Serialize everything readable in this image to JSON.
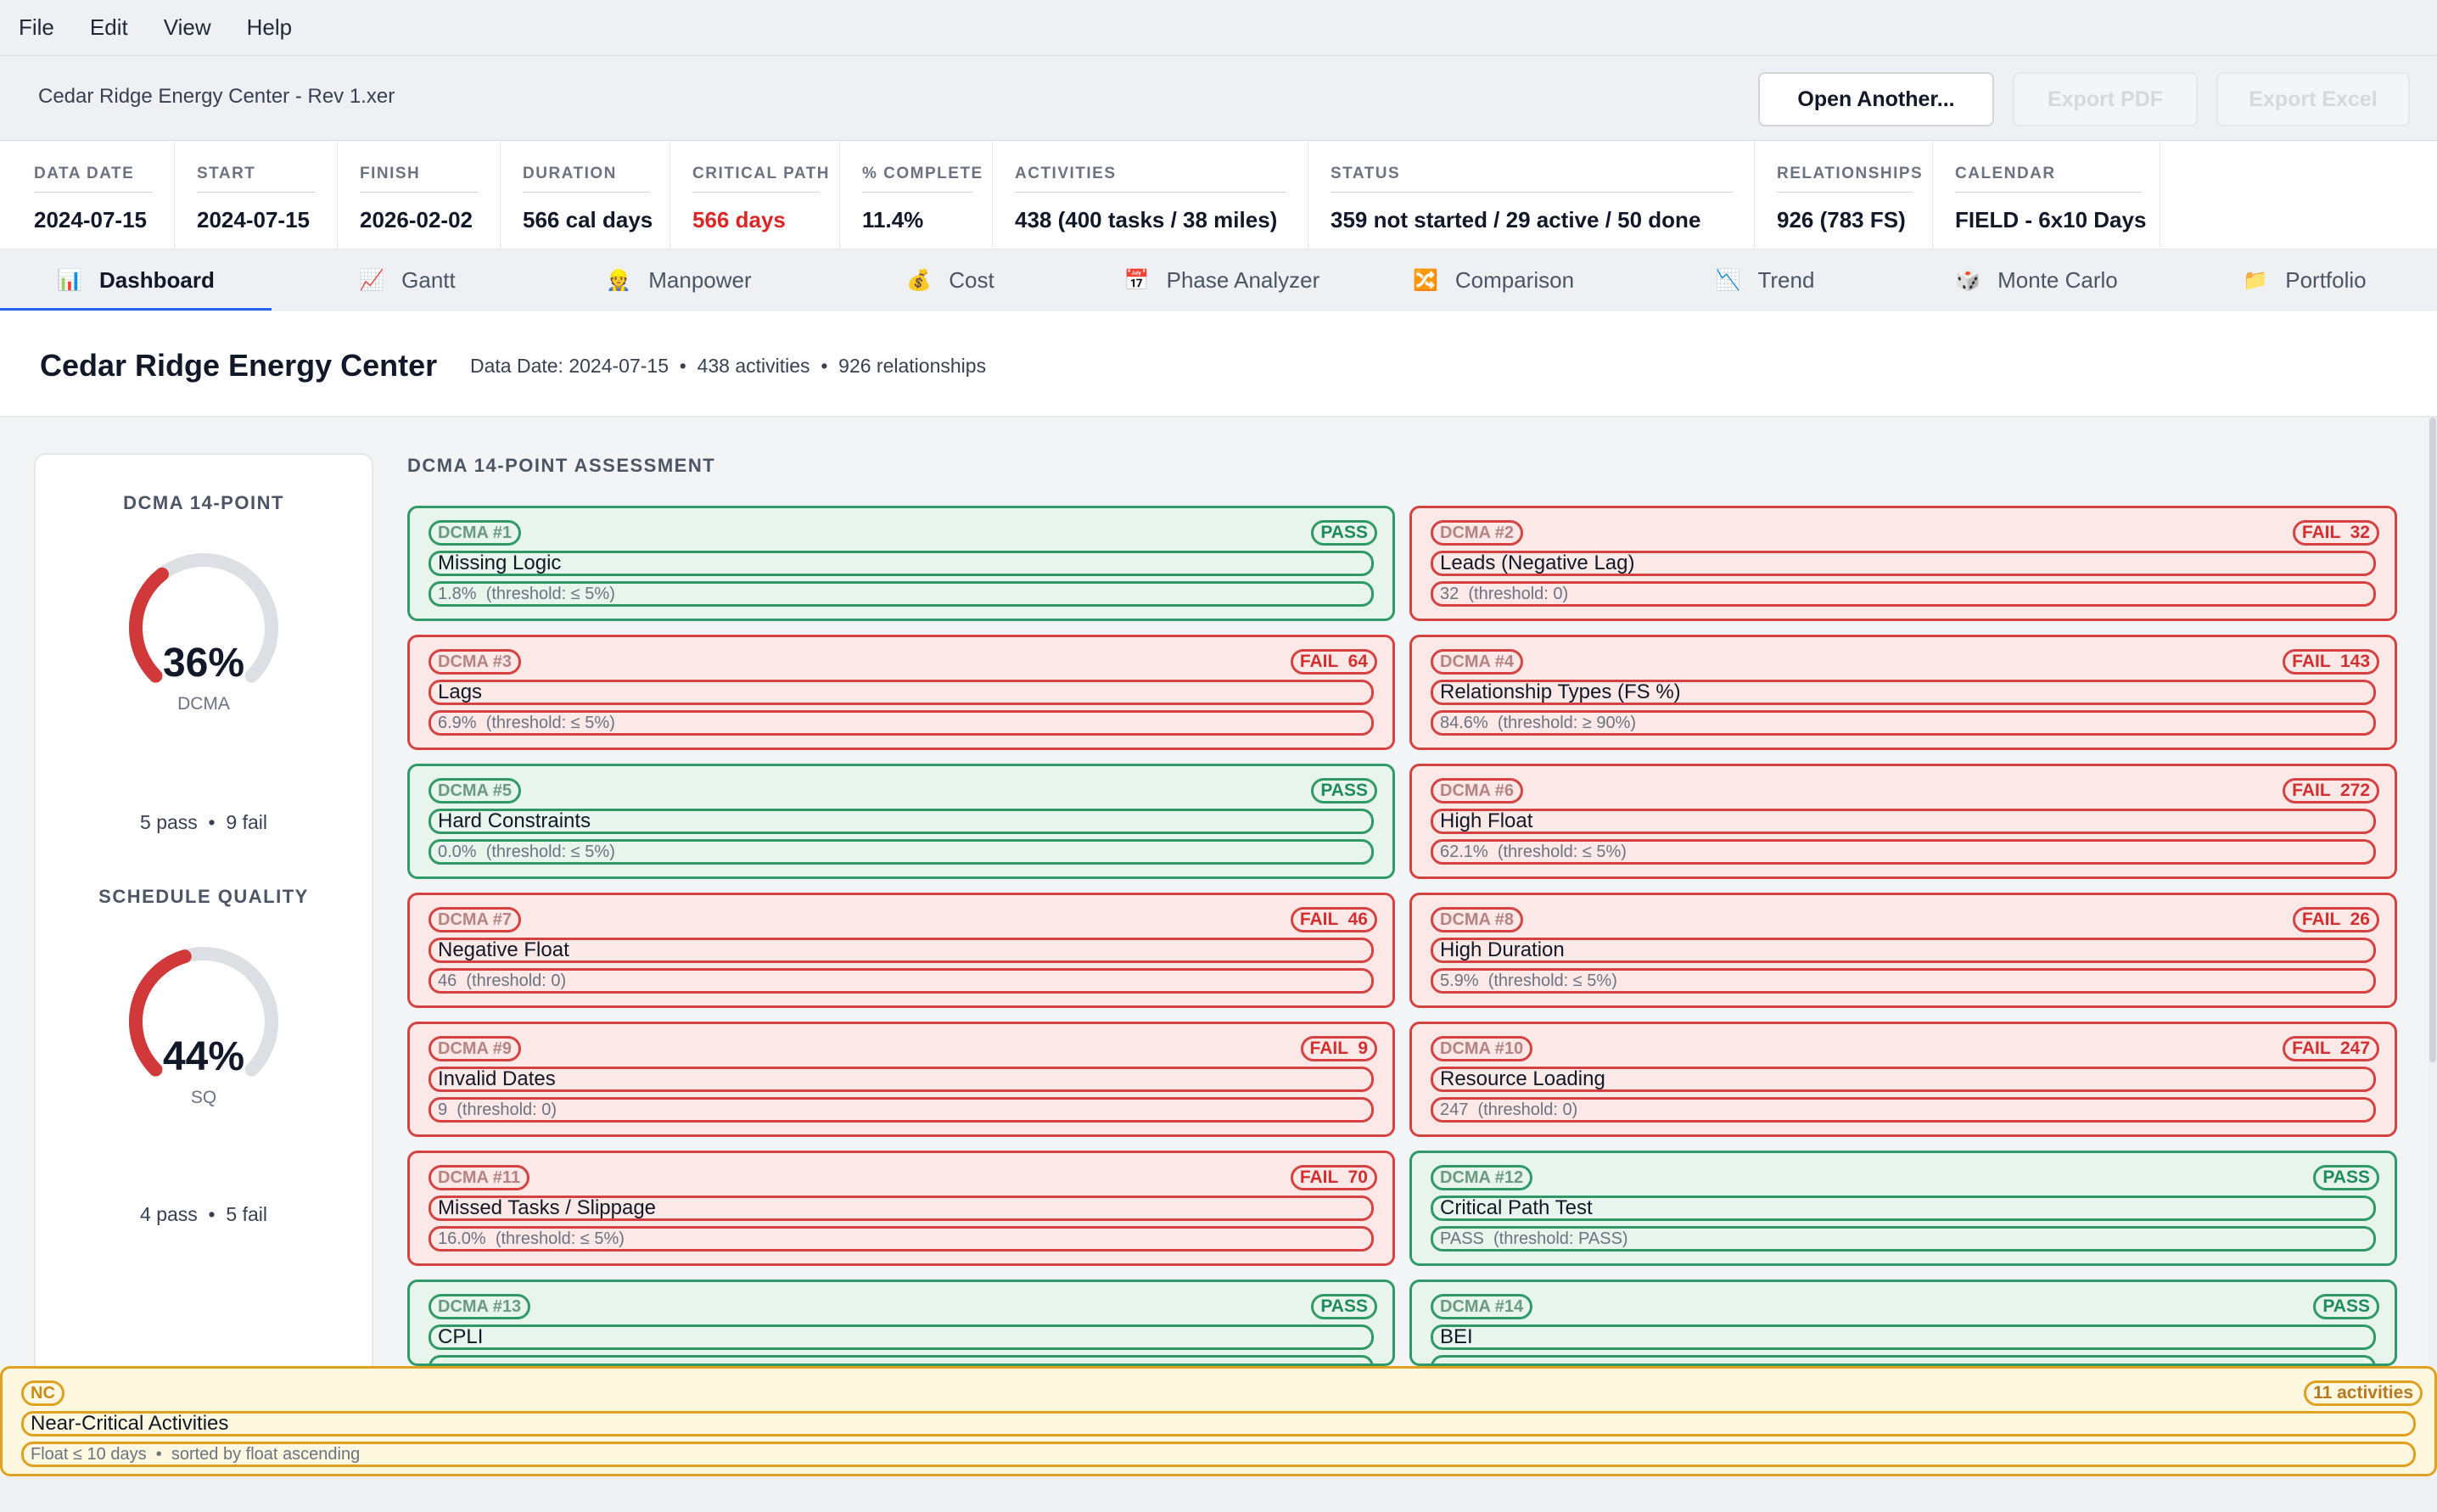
{
  "menu": [
    "File",
    "Edit",
    "View",
    "Help"
  ],
  "file": {
    "name": "Cedar Ridge Energy Center - Rev 1.xer",
    "open_label": "Open Another...",
    "export_pdf_label": "Export PDF",
    "export_excel_label": "Export Excel"
  },
  "stats": [
    {
      "label": "DATA DATE",
      "value": "2024-07-15"
    },
    {
      "label": "START",
      "value": "2024-07-15"
    },
    {
      "label": "FINISH",
      "value": "2026-02-02"
    },
    {
      "label": "DURATION",
      "value": "566 cal days"
    },
    {
      "label": "CRITICAL PATH",
      "value": "566 days"
    },
    {
      "label": "% COMPLETE",
      "value": "11.4%"
    },
    {
      "label": "ACTIVITIES",
      "value": "438  (400 tasks / 38 miles)"
    },
    {
      "label": "STATUS",
      "value": "359 not started  /  29 active  /  50 done"
    },
    {
      "label": "RELATIONSHIPS",
      "value": "926  (783 FS)"
    },
    {
      "label": "CALENDAR",
      "value": "FIELD - 6x10 Days"
    }
  ],
  "tabs": [
    {
      "label": "Dashboard",
      "icon": "📊",
      "icon_name": "bar-chart-icon"
    },
    {
      "label": "Gantt",
      "icon": "📈",
      "icon_name": "line-chart-icon"
    },
    {
      "label": "Manpower",
      "icon": "👷",
      "icon_name": "worker-icon"
    },
    {
      "label": "Cost",
      "icon": "💰",
      "icon_name": "money-bag-icon"
    },
    {
      "label": "Phase Analyzer",
      "icon": "📅",
      "icon_name": "calendar-icon"
    },
    {
      "label": "Comparison",
      "icon": "🔀",
      "icon_name": "shuffle-icon"
    },
    {
      "label": "Trend",
      "icon": "📉",
      "icon_name": "trend-down-icon"
    },
    {
      "label": "Monte Carlo",
      "icon": "🎲",
      "icon_name": "dice-icon"
    },
    {
      "label": "Portfolio",
      "icon": "📁",
      "icon_name": "folder-icon"
    }
  ],
  "page": {
    "title": "Cedar Ridge Energy Center",
    "meta": "Data Date: 2024-07-15  •  438 activities  •  926 relationships"
  },
  "gauges": {
    "dcma": {
      "title": "DCMA 14-POINT",
      "pct": "36%",
      "value": 0.36,
      "sub": "DCMA",
      "foot": "5 pass  •  9 fail"
    },
    "sq": {
      "title": "SCHEDULE QUALITY",
      "pct": "44%",
      "value": 0.44,
      "sub": "SQ",
      "foot": "4 pass  •  5 fail"
    }
  },
  "assessment": {
    "title": "DCMA 14-POINT ASSESSMENT",
    "checks": [
      {
        "tag": "DCMA #1",
        "status": "PASS",
        "name": "Missing Logic",
        "detail": "1.8%  (threshold: ≤ 5%)"
      },
      {
        "tag": "DCMA #2",
        "status": "FAIL  32",
        "name": "Leads (Negative Lag)",
        "detail": "32  (threshold: 0)"
      },
      {
        "tag": "DCMA #3",
        "status": "FAIL  64",
        "name": "Lags",
        "detail": "6.9%  (threshold: ≤ 5%)"
      },
      {
        "tag": "DCMA #4",
        "status": "FAIL  143",
        "name": "Relationship Types (FS %)",
        "detail": "84.6%  (threshold: ≥ 90%)"
      },
      {
        "tag": "DCMA #5",
        "status": "PASS",
        "name": "Hard Constraints",
        "detail": "0.0%  (threshold: ≤ 5%)"
      },
      {
        "tag": "DCMA #6",
        "status": "FAIL  272",
        "name": "High Float",
        "detail": "62.1%  (threshold: ≤ 5%)"
      },
      {
        "tag": "DCMA #7",
        "status": "FAIL  46",
        "name": "Negative Float",
        "detail": "46  (threshold: 0)"
      },
      {
        "tag": "DCMA #8",
        "status": "FAIL  26",
        "name": "High Duration",
        "detail": "5.9%  (threshold: ≤ 5%)"
      },
      {
        "tag": "DCMA #9",
        "status": "FAIL  9",
        "name": "Invalid Dates",
        "detail": "9  (threshold: 0)"
      },
      {
        "tag": "DCMA #10",
        "status": "FAIL  247",
        "name": "Resource Loading",
        "detail": "247  (threshold: 0)"
      },
      {
        "tag": "DCMA #11",
        "status": "FAIL  70",
        "name": "Missed Tasks / Slippage",
        "detail": "16.0%  (threshold: ≤ 5%)"
      },
      {
        "tag": "DCMA #12",
        "status": "PASS",
        "name": "Critical Path Test",
        "detail": "PASS  (threshold: PASS)"
      },
      {
        "tag": "DCMA #13",
        "status": "PASS",
        "name": "CPLI",
        "detail": ""
      },
      {
        "tag": "DCMA #14",
        "status": "PASS",
        "name": "BEI",
        "detail": ""
      }
    ]
  },
  "near_critical": {
    "tag": "NC",
    "count": "11 activities",
    "name": "Near-Critical Activities",
    "detail": "Float ≤ 10 days  •  sorted by float ascending"
  },
  "colors": {
    "pass": "#2f9968",
    "fail": "#d64242",
    "warn": "#e0a020",
    "accent": "#2563eb",
    "gauge_fill": "#d0383a",
    "gauge_track": "#dcdfe3"
  }
}
